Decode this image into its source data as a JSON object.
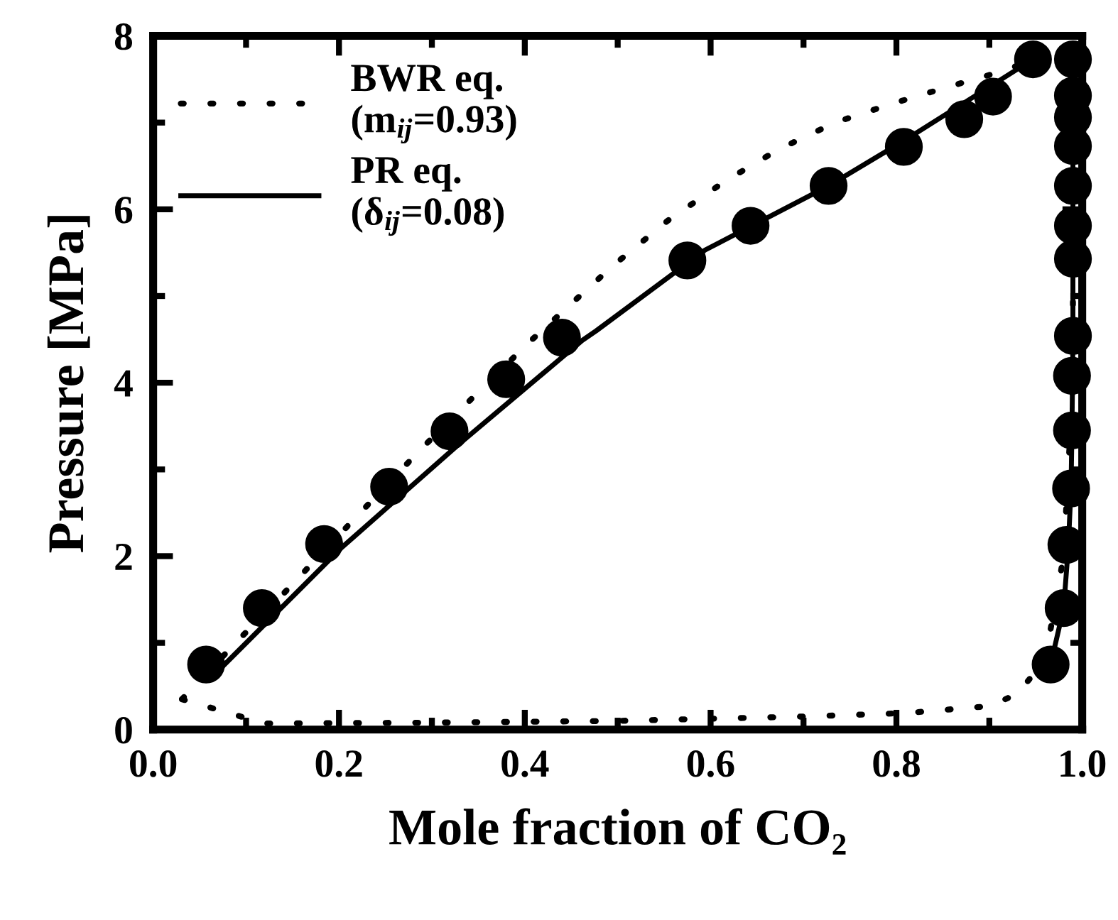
{
  "chart_data": {
    "type": "scatter",
    "xlabel": "Mole fraction of CO₂",
    "ylabel": "Pressure [MPa]",
    "xlim": [
      0,
      1
    ],
    "xticks": [
      {
        "value": 0,
        "label": "0.0"
      },
      {
        "value": 0.2,
        "label": "0.2"
      },
      {
        "value": 0.4,
        "label": "0.4"
      },
      {
        "value": 0.6,
        "label": "0.6"
      },
      {
        "value": 0.8,
        "label": "0.8"
      },
      {
        "value": 1,
        "label": "1.0"
      }
    ],
    "ylim": [
      0,
      8
    ],
    "yticks": [
      0,
      2,
      4,
      6,
      8
    ],
    "legend": "top left",
    "marker": "circle",
    "series": [
      {
        "type": "line",
        "name": "BWR eq.\n(m$_{ij}$=0.93)",
        "color": "#000000",
        "line_style": "dotted",
        "marker": "none",
        "x": [
          0.031,
          0.088,
          0.145,
          0.174,
          0.23,
          0.287,
          0.346,
          0.406,
          0.495,
          0.554,
          0.615,
          0.673,
          0.734,
          0.793,
          0.852,
          0.91,
          0.95
        ],
        "values": [
          0.35,
          0.99,
          1.62,
          1.95,
          2.58,
          3.22,
          3.85,
          4.48,
          5.35,
          5.87,
          6.32,
          6.69,
          7.0,
          7.21,
          7.4,
          7.58,
          7.73
        ]
      },
      {
        "type": "line",
        "color": "#000000",
        "line_style": "dotted",
        "marker": "none",
        "x": [
          0.031,
          0.12,
          0.3,
          0.5,
          0.7,
          0.81,
          0.9,
          0.93,
          0.96,
          0.98,
          0.99,
          0.99,
          0.99
        ],
        "values": [
          0.35,
          0.07,
          0.08,
          0.1,
          0.15,
          0.19,
          0.27,
          0.41,
          0.8,
          2.0,
          4.0,
          6.0,
          7.6
        ]
      },
      {
        "type": "line",
        "name": "PR eq.\n(δ$_{ij}$=0.08)",
        "color": "#000000",
        "line_style": "solid",
        "marker": "none",
        "x": [
          0.074,
          0.202,
          0.329,
          0.462,
          0.477,
          0.594,
          0.727,
          0.808,
          0.885,
          0.947
        ],
        "values": [
          0.72,
          2.09,
          3.29,
          4.49,
          4.6,
          5.53,
          6.27,
          6.79,
          7.31,
          7.73
        ]
      },
      {
        "type": "line",
        "color": "#000000",
        "line_style": "solid",
        "marker": "none",
        "x": [
          0.966,
          0.98,
          0.985,
          0.988,
          0.989,
          0.99,
          0.99,
          0.99,
          0.99
        ],
        "values": [
          0.75,
          1.4,
          2.1,
          2.8,
          3.5,
          4.5,
          6.0,
          7.3,
          7.73
        ]
      },
      {
        "color": "#000000",
        "x": [
          0.057,
          0.117,
          0.184,
          0.254,
          0.319,
          0.38,
          0.44,
          0.575,
          0.643,
          0.727,
          0.808,
          0.873,
          0.904,
          0.947
        ],
        "values": [
          0.75,
          1.4,
          2.14,
          2.8,
          3.44,
          4.04,
          4.52,
          5.41,
          5.81,
          6.27,
          6.72,
          7.04,
          7.3,
          7.73
        ]
      },
      {
        "color": "#000000",
        "x": [
          0.966,
          0.98,
          0.983,
          0.988,
          0.989,
          0.989,
          0.99,
          0.99,
          0.99,
          0.99,
          0.99,
          0.99,
          0.99,
          0.99
        ],
        "values": [
          0.75,
          1.4,
          2.13,
          2.78,
          3.45,
          4.08,
          4.54,
          5.43,
          5.81,
          6.27,
          6.73,
          7.06,
          7.31,
          7.73
        ]
      }
    ]
  }
}
